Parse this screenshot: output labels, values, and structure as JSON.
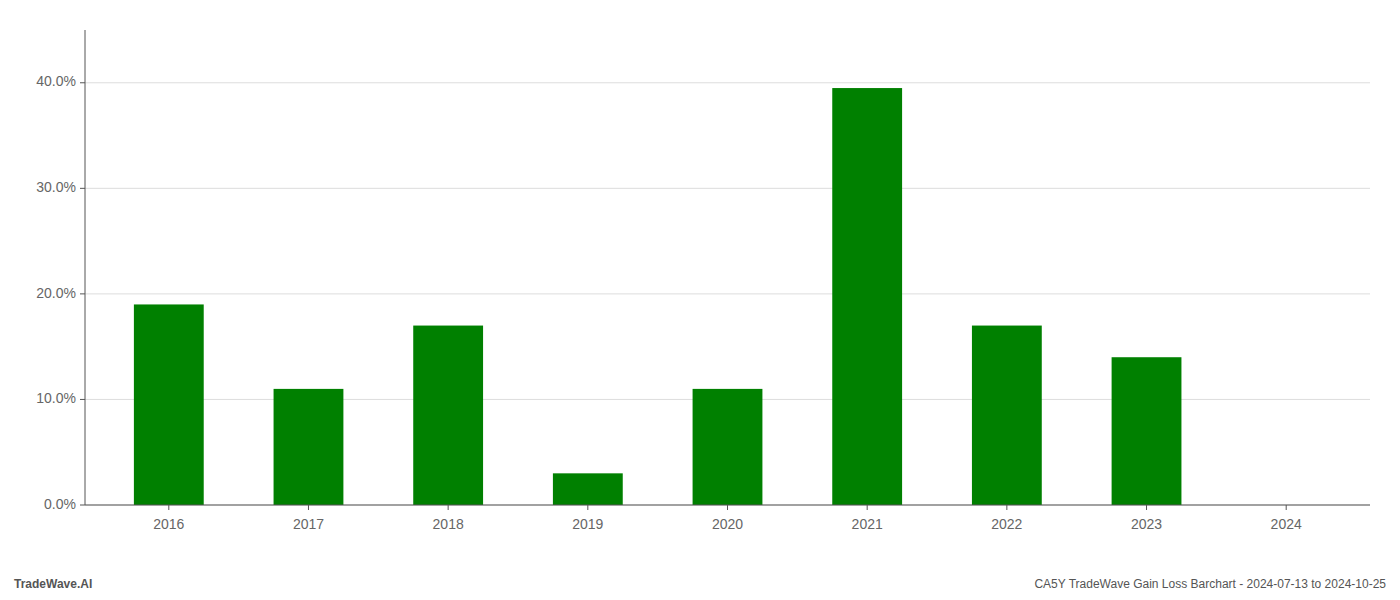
{
  "chart_data": {
    "type": "bar",
    "categories": [
      "2016",
      "2017",
      "2018",
      "2019",
      "2020",
      "2021",
      "2022",
      "2023",
      "2024"
    ],
    "values": [
      0.19,
      0.11,
      0.17,
      0.03,
      0.11,
      0.395,
      0.17,
      0.14,
      0.0
    ],
    "color": "#008000",
    "ylim": [
      0,
      0.45
    ],
    "yticks": [
      {
        "value": 0.0,
        "label": "0.0%"
      },
      {
        "value": 0.1,
        "label": "10.0%"
      },
      {
        "value": 0.2,
        "label": "20.0%"
      },
      {
        "value": 0.3,
        "label": "30.0%"
      },
      {
        "value": 0.4,
        "label": "40.0%"
      }
    ],
    "grid": true,
    "annotations": [
      "TradeWave.AI",
      "CA5Y TradeWave Gain Loss Barchart - 2024-07-13 to 2024-10-25"
    ]
  }
}
